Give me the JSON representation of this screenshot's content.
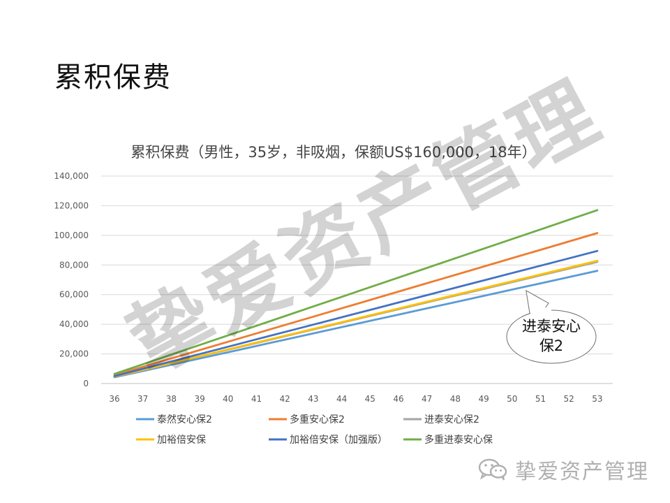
{
  "slide": {
    "title": "累积保费"
  },
  "chart_data": {
    "type": "line",
    "title": "累积保费（男性，35岁，非吸烟，保额US$160,000，18年）",
    "xlabel": "",
    "ylabel": "",
    "x": [
      36,
      37,
      38,
      39,
      40,
      41,
      42,
      43,
      44,
      45,
      46,
      47,
      48,
      49,
      50,
      51,
      52,
      53
    ],
    "x_tick_labels": [
      "36",
      "37",
      "38",
      "39",
      "40",
      "41",
      "42",
      "43",
      "44",
      "45",
      "46",
      "47",
      "48",
      "49",
      "50",
      "51",
      "52",
      "53"
    ],
    "ylim": [
      0,
      140000
    ],
    "y_ticks": [
      0,
      20000,
      40000,
      60000,
      80000,
      100000,
      120000,
      140000
    ],
    "y_tick_labels": [
      "0",
      "20,000",
      "40,000",
      "60,000",
      "80,000",
      "100,000",
      "120,000",
      "140,000"
    ],
    "grid": "horizontal",
    "legend_position": "bottom",
    "series": [
      {
        "name": "泰然安心保2",
        "color": "#5B9BD5",
        "values": [
          4226,
          8452,
          12678,
          16904,
          21130,
          25356,
          29582,
          33808,
          38034,
          42260,
          46486,
          50712,
          54938,
          59164,
          63390,
          67616,
          71842,
          76068
        ]
      },
      {
        "name": "多重安心保2",
        "color": "#ED7D31",
        "values": [
          5640,
          11280,
          16920,
          22560,
          28200,
          33840,
          39480,
          45120,
          50760,
          56400,
          62040,
          67680,
          73320,
          78960,
          84600,
          90240,
          95880,
          101520
        ]
      },
      {
        "name": "进泰安心保2",
        "color": "#A5A5A5",
        "values": [
          4560,
          9120,
          13680,
          18240,
          22800,
          27360,
          31920,
          36480,
          41040,
          45600,
          50160,
          54720,
          59280,
          63840,
          68400,
          72960,
          77520,
          82080
        ]
      },
      {
        "name": "加裕倍安保",
        "color": "#FFC000",
        "values": [
          4600,
          9200,
          13800,
          18400,
          23000,
          27600,
          32200,
          36800,
          41400,
          46000,
          50600,
          55200,
          59800,
          64400,
          69000,
          73600,
          78200,
          82800
        ]
      },
      {
        "name": "加裕倍安保（加强版）",
        "color": "#4472C4",
        "values": [
          4970,
          9940,
          14910,
          19880,
          24850,
          29820,
          34790,
          39760,
          44730,
          49700,
          54670,
          59640,
          64610,
          69580,
          74550,
          79520,
          84490,
          89460
        ]
      },
      {
        "name": "多重进泰安心保",
        "color": "#70AD47",
        "values": [
          6500,
          13000,
          19500,
          26000,
          32500,
          39000,
          45500,
          52000,
          58500,
          65000,
          71500,
          78000,
          84500,
          91000,
          97500,
          104000,
          110500,
          117000
        ]
      }
    ],
    "annotations": [
      {
        "text": "进泰安心保2",
        "target_series": "进泰安心保2",
        "shape": "ellipse-callout"
      }
    ]
  },
  "watermark": {
    "text": "挚爱资产管理"
  },
  "footer": {
    "brand": "挚爱资产管理",
    "icon": "wechat-icon"
  }
}
